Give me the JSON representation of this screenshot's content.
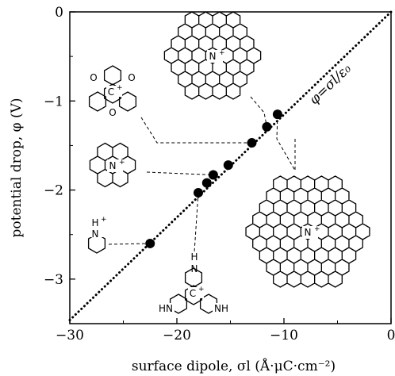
{
  "chart_data": {
    "type": "scatter",
    "xlabel": "surface dipole, σl (Å·μC·cm⁻²)",
    "ylabel": "potential drop, φ (V)",
    "xlim": [
      -30,
      0
    ],
    "ylim": [
      -3.5,
      0
    ],
    "x_ticks": [
      "−30",
      "−20",
      "−10",
      "0"
    ],
    "y_ticks": [
      "0",
      "−1",
      "−2",
      "−3"
    ],
    "grid": false,
    "points": [
      {
        "x": -22.5,
        "y": -2.6
      },
      {
        "x": -18.0,
        "y": -2.03
      },
      {
        "x": -17.2,
        "y": -1.92
      },
      {
        "x": -16.6,
        "y": -1.83
      },
      {
        "x": -15.2,
        "y": -1.72
      },
      {
        "x": -13.0,
        "y": -1.47
      },
      {
        "x": -11.6,
        "y": -1.29
      },
      {
        "x": -10.6,
        "y": -1.15
      }
    ],
    "fit_line": {
      "x": [
        -30,
        0
      ],
      "y": [
        -3.46,
        0
      ]
    },
    "fit_annotation": "φ=σl/ε₀",
    "molecule_labels": {
      "n_plus": "N",
      "c_plus": "C",
      "h_plus": "H",
      "plus": "+",
      "oxygen": "O",
      "hydrogen": "H",
      "hn": "HN",
      "nh": "NH"
    }
  }
}
